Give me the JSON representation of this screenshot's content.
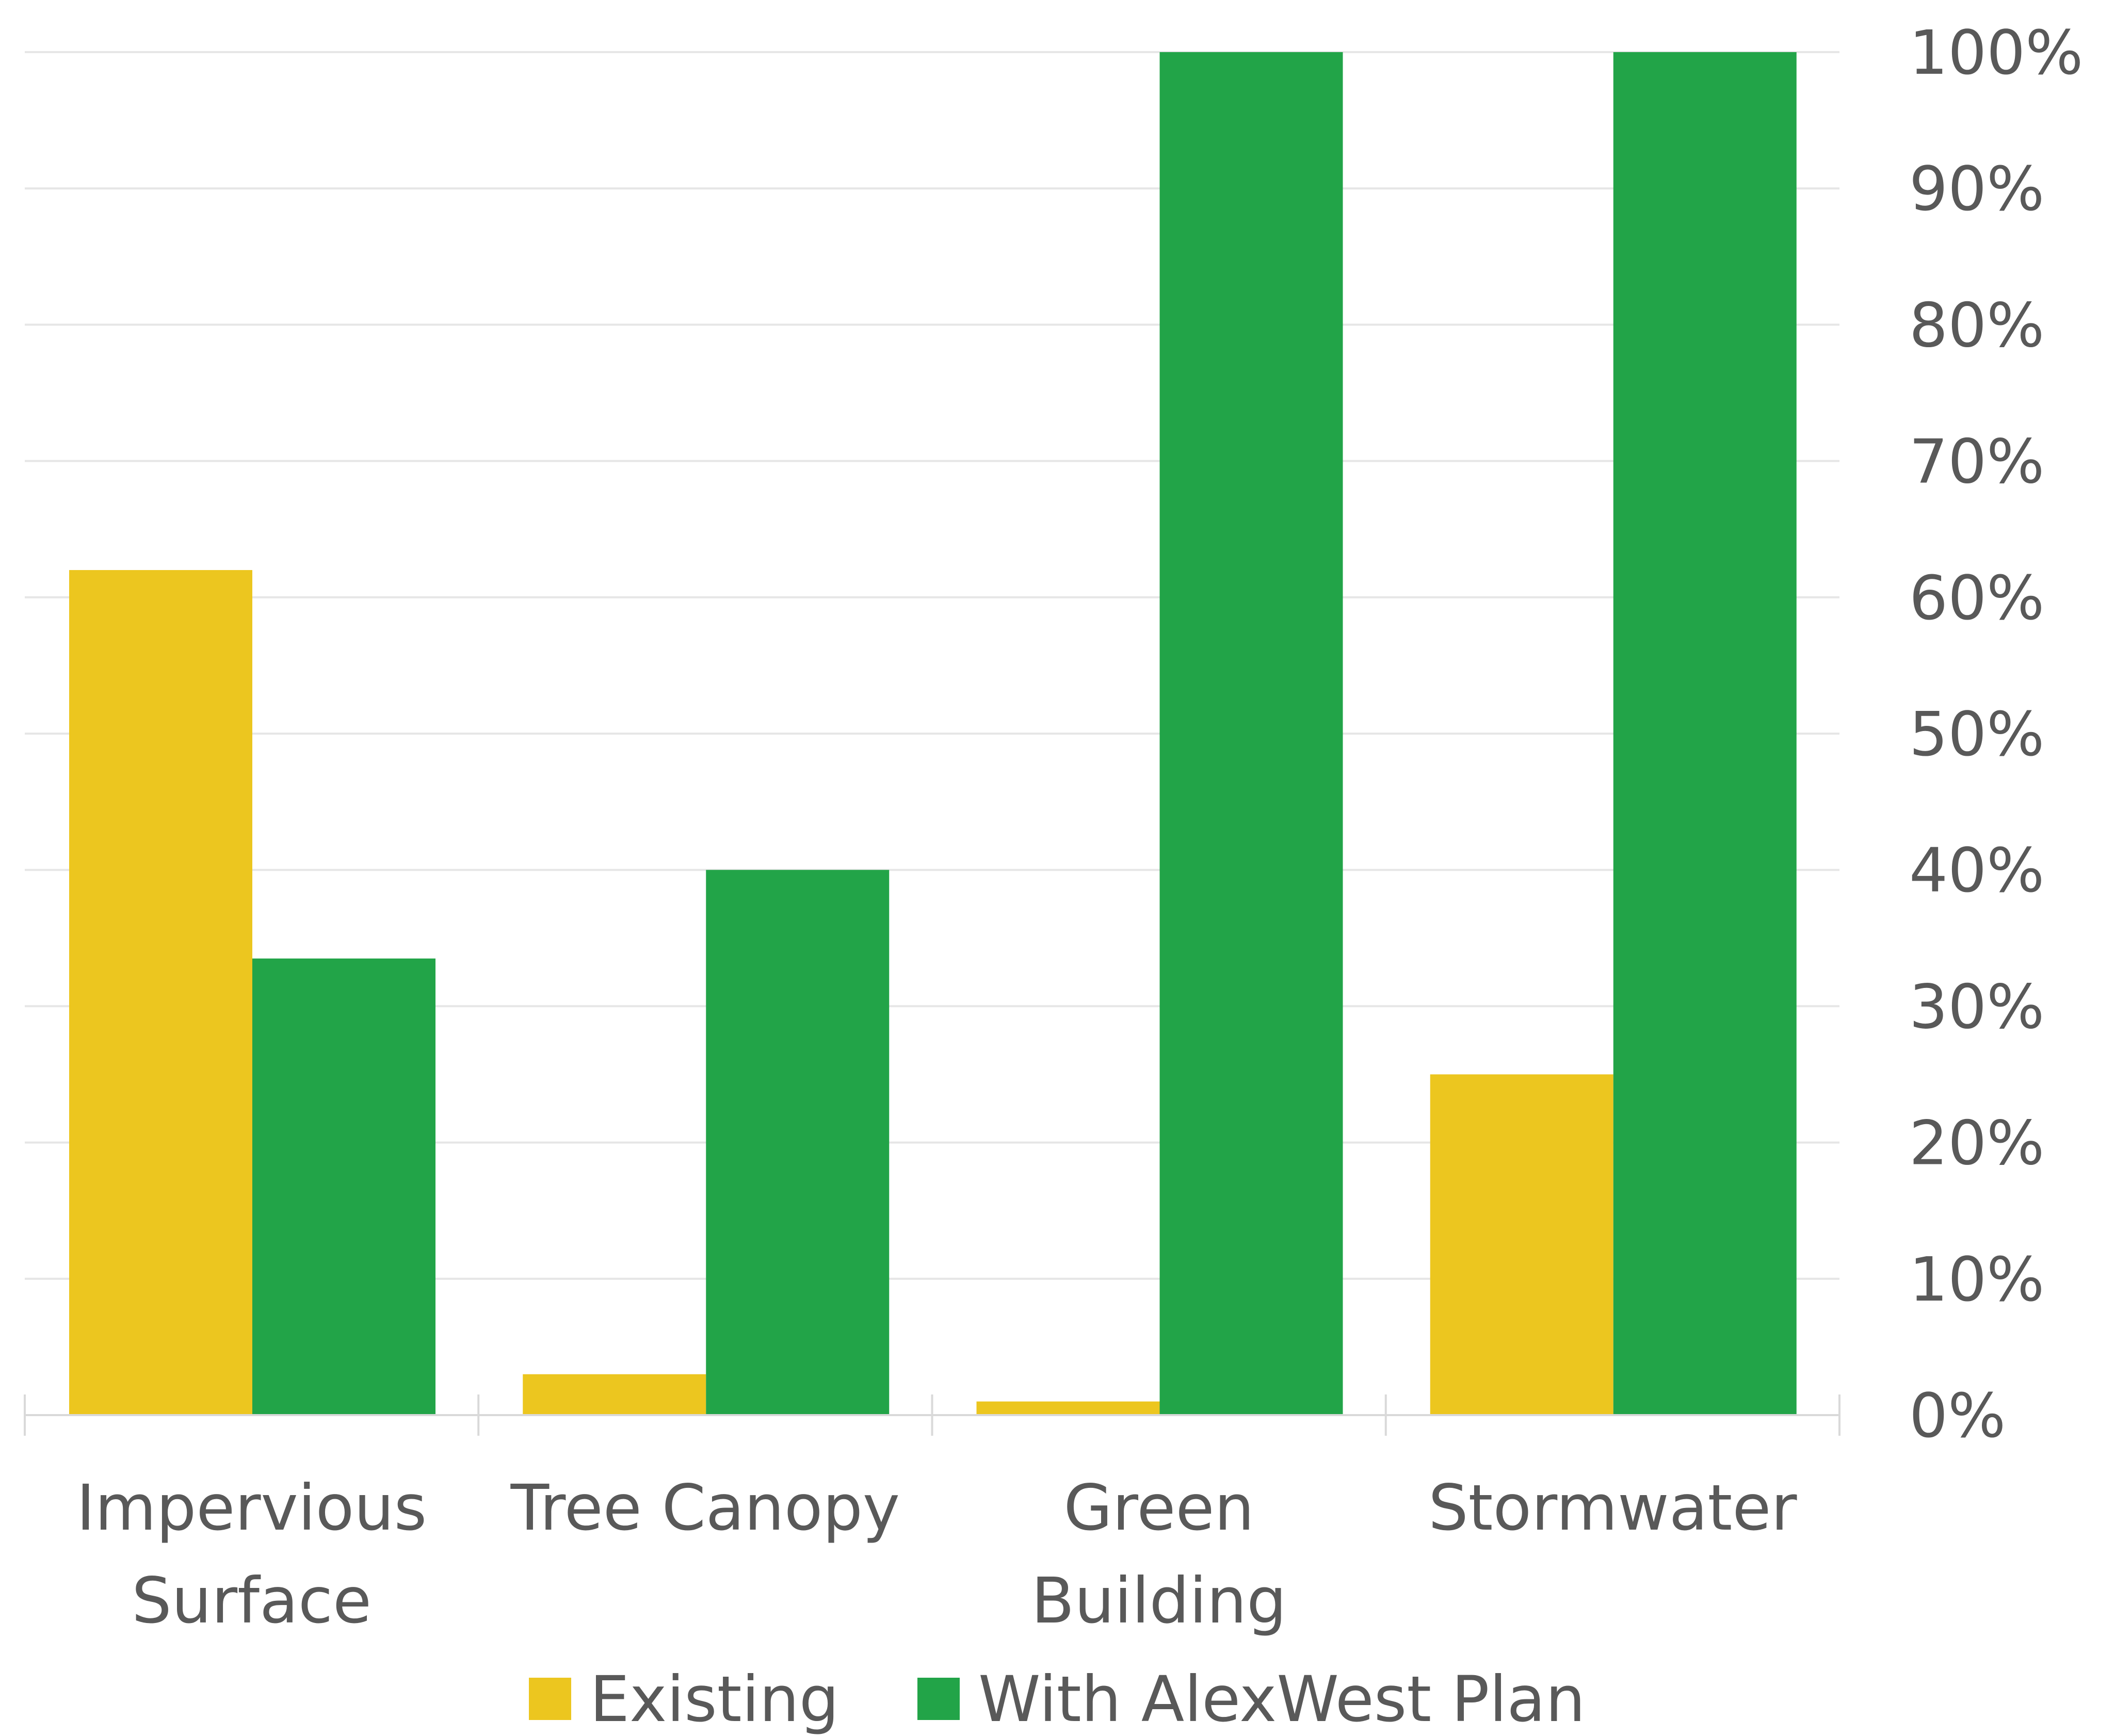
{
  "chart_data": {
    "type": "bar",
    "categories": [
      [
        "Impervious",
        "Surface"
      ],
      [
        "Tree Canopy"
      ],
      [
        "Green",
        "Building"
      ],
      [
        "Stormwater"
      ]
    ],
    "series": [
      {
        "name": "Existing",
        "values": [
          62,
          3,
          1,
          25
        ],
        "color": "#ecc61f"
      },
      {
        "name": "With AlexWest Plan",
        "values": [
          33.5,
          40,
          100,
          100
        ],
        "color": "#22a448"
      }
    ],
    "ylim": [
      0,
      100
    ],
    "yticks": [
      "0%",
      "10%",
      "20%",
      "30%",
      "40%",
      "50%",
      "60%",
      "70%",
      "80%",
      "90%",
      "100%"
    ],
    "y_axis_side": "right",
    "grid": true,
    "legend_position": "bottom"
  }
}
